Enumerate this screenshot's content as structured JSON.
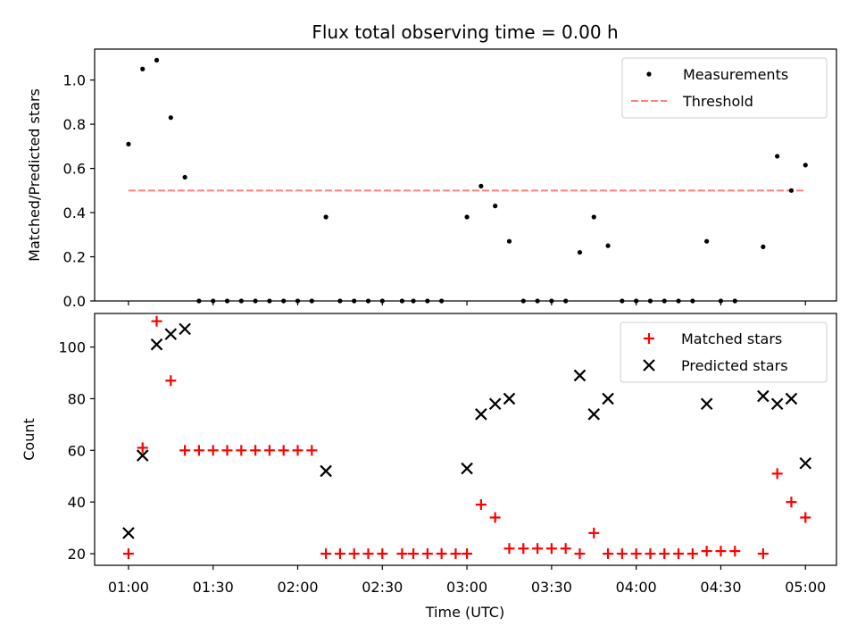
{
  "chart_data": [
    {
      "type": "scatter",
      "title": "Flux total observing time = 0.00 h",
      "ylabel": "Matched/Predicted stars",
      "xlabel": "",
      "ylim": [
        0,
        1.14
      ],
      "yticks": [
        "0.0",
        "0.2",
        "0.4",
        "0.6",
        "0.8",
        "1.0"
      ],
      "ytick_values": [
        0,
        0.2,
        0.4,
        0.6,
        0.8,
        1.0
      ],
      "legend_position": "top-right",
      "threshold": {
        "name": "Threshold",
        "value": 0.5,
        "x_start": "01:00",
        "x_end": "05:00",
        "color": "#ff8080"
      },
      "series": [
        {
          "name": "Measurements",
          "color": "#000000",
          "x": [
            "01:00",
            "01:05",
            "01:10",
            "01:15",
            "01:20",
            "01:25",
            "01:30",
            "01:35",
            "01:40",
            "01:45",
            "01:50",
            "01:55",
            "02:00",
            "02:05",
            "02:10",
            "02:15",
            "02:20",
            "02:25",
            "02:30",
            "02:37",
            "02:41",
            "02:46",
            "02:51",
            "03:00",
            "03:05",
            "03:10",
            "03:15",
            "03:20",
            "03:25",
            "03:30",
            "03:35",
            "03:40",
            "03:45",
            "03:50",
            "03:55",
            "04:00",
            "04:05",
            "04:10",
            "04:15",
            "04:20",
            "04:25",
            "04:30",
            "04:35",
            "04:45",
            "04:50",
            "04:55",
            "05:00"
          ],
          "y": [
            0.71,
            1.05,
            1.09,
            0.83,
            0.56,
            0,
            0,
            0,
            0,
            0,
            0,
            0,
            0,
            0,
            0.38,
            0,
            0,
            0,
            0,
            0,
            0,
            0,
            0,
            0.38,
            0.52,
            0.43,
            0.27,
            0,
            0,
            0,
            0,
            0.22,
            0.38,
            0.25,
            0,
            0,
            0,
            0,
            0,
            0,
            0.27,
            0,
            0,
            0.245,
            0.655,
            0.5,
            0.615
          ]
        }
      ]
    },
    {
      "type": "scatter",
      "title": "",
      "ylabel": "Count",
      "xlabel": "Time (UTC)",
      "xlim": [
        "00:48",
        "05:11"
      ],
      "xticks": [
        "01:00",
        "01:30",
        "02:00",
        "02:30",
        "03:00",
        "03:30",
        "04:00",
        "04:30",
        "05:00"
      ],
      "ylim": [
        15.5,
        113
      ],
      "yticks": [
        "20",
        "40",
        "60",
        "80",
        "100"
      ],
      "ytick_values": [
        20,
        40,
        60,
        80,
        100
      ],
      "legend_position": "top-right",
      "series": [
        {
          "name": "Matched stars",
          "color": "#ff0000",
          "x": [
            "01:00",
            "01:05",
            "01:10",
            "01:15",
            "01:20",
            "01:25",
            "01:30",
            "01:35",
            "01:40",
            "01:45",
            "01:50",
            "01:55",
            "02:00",
            "02:05",
            "02:10",
            "02:15",
            "02:20",
            "02:25",
            "02:30",
            "02:37",
            "02:41",
            "02:46",
            "02:51",
            "02:56",
            "03:00",
            "03:05",
            "03:10",
            "03:15",
            "03:20",
            "03:25",
            "03:30",
            "03:35",
            "03:40",
            "03:45",
            "03:50",
            "03:55",
            "04:00",
            "04:05",
            "04:10",
            "04:15",
            "04:20",
            "04:25",
            "04:30",
            "04:35",
            "04:45",
            "04:50",
            "04:55",
            "05:00"
          ],
          "y": [
            20,
            61,
            110,
            87,
            60,
            60,
            60,
            60,
            60,
            60,
            60,
            60,
            60,
            60,
            20,
            20,
            20,
            20,
            20,
            20,
            20,
            20,
            20,
            20,
            20,
            39,
            34,
            22,
            22,
            22,
            22,
            22,
            20,
            28,
            20,
            20,
            20,
            20,
            20,
            20,
            20,
            21,
            21,
            21,
            20,
            51,
            40,
            34
          ]
        },
        {
          "name": "Predicted stars",
          "color": "#000000",
          "x": [
            "01:00",
            "01:05",
            "01:10",
            "01:15",
            "01:20",
            "02:10",
            "03:00",
            "03:05",
            "03:10",
            "03:15",
            "03:40",
            "03:45",
            "03:50",
            "04:25",
            "04:45",
            "04:50",
            "04:55",
            "05:00"
          ],
          "y": [
            28,
            58,
            101,
            105,
            107,
            52,
            53,
            74,
            78,
            80,
            89,
            74,
            80,
            78,
            81,
            78,
            80,
            55
          ]
        }
      ]
    }
  ]
}
